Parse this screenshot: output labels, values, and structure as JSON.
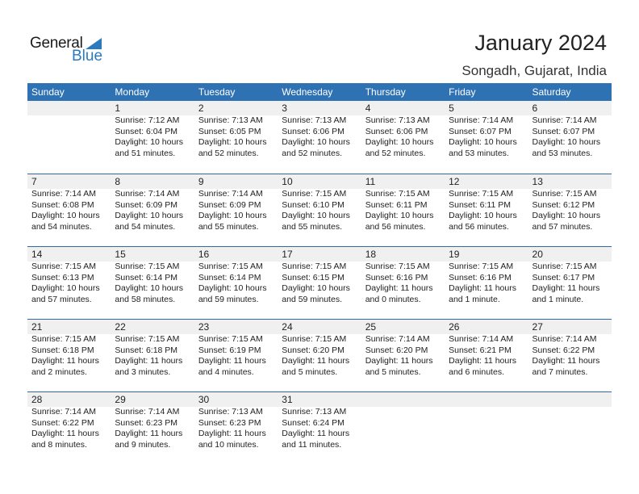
{
  "logo": {
    "general": "General",
    "blue": "Blue"
  },
  "header": {
    "title": "January 2024",
    "location": "Songadh, Gujarat, India"
  },
  "weekdays": [
    "Sunday",
    "Monday",
    "Tuesday",
    "Wednesday",
    "Thursday",
    "Friday",
    "Saturday"
  ],
  "weeks": [
    [
      null,
      {
        "day": "1",
        "sunrise": "Sunrise: 7:12 AM",
        "sunset": "Sunset: 6:04 PM",
        "daylight": "Daylight: 10 hours",
        "minutes": "and 51 minutes."
      },
      {
        "day": "2",
        "sunrise": "Sunrise: 7:13 AM",
        "sunset": "Sunset: 6:05 PM",
        "daylight": "Daylight: 10 hours",
        "minutes": "and 52 minutes."
      },
      {
        "day": "3",
        "sunrise": "Sunrise: 7:13 AM",
        "sunset": "Sunset: 6:06 PM",
        "daylight": "Daylight: 10 hours",
        "minutes": "and 52 minutes."
      },
      {
        "day": "4",
        "sunrise": "Sunrise: 7:13 AM",
        "sunset": "Sunset: 6:06 PM",
        "daylight": "Daylight: 10 hours",
        "minutes": "and 52 minutes."
      },
      {
        "day": "5",
        "sunrise": "Sunrise: 7:14 AM",
        "sunset": "Sunset: 6:07 PM",
        "daylight": "Daylight: 10 hours",
        "minutes": "and 53 minutes."
      },
      {
        "day": "6",
        "sunrise": "Sunrise: 7:14 AM",
        "sunset": "Sunset: 6:07 PM",
        "daylight": "Daylight: 10 hours",
        "minutes": "and 53 minutes."
      }
    ],
    [
      {
        "day": "7",
        "sunrise": "Sunrise: 7:14 AM",
        "sunset": "Sunset: 6:08 PM",
        "daylight": "Daylight: 10 hours",
        "minutes": "and 54 minutes."
      },
      {
        "day": "8",
        "sunrise": "Sunrise: 7:14 AM",
        "sunset": "Sunset: 6:09 PM",
        "daylight": "Daylight: 10 hours",
        "minutes": "and 54 minutes."
      },
      {
        "day": "9",
        "sunrise": "Sunrise: 7:14 AM",
        "sunset": "Sunset: 6:09 PM",
        "daylight": "Daylight: 10 hours",
        "minutes": "and 55 minutes."
      },
      {
        "day": "10",
        "sunrise": "Sunrise: 7:15 AM",
        "sunset": "Sunset: 6:10 PM",
        "daylight": "Daylight: 10 hours",
        "minutes": "and 55 minutes."
      },
      {
        "day": "11",
        "sunrise": "Sunrise: 7:15 AM",
        "sunset": "Sunset: 6:11 PM",
        "daylight": "Daylight: 10 hours",
        "minutes": "and 56 minutes."
      },
      {
        "day": "12",
        "sunrise": "Sunrise: 7:15 AM",
        "sunset": "Sunset: 6:11 PM",
        "daylight": "Daylight: 10 hours",
        "minutes": "and 56 minutes."
      },
      {
        "day": "13",
        "sunrise": "Sunrise: 7:15 AM",
        "sunset": "Sunset: 6:12 PM",
        "daylight": "Daylight: 10 hours",
        "minutes": "and 57 minutes."
      }
    ],
    [
      {
        "day": "14",
        "sunrise": "Sunrise: 7:15 AM",
        "sunset": "Sunset: 6:13 PM",
        "daylight": "Daylight: 10 hours",
        "minutes": "and 57 minutes."
      },
      {
        "day": "15",
        "sunrise": "Sunrise: 7:15 AM",
        "sunset": "Sunset: 6:14 PM",
        "daylight": "Daylight: 10 hours",
        "minutes": "and 58 minutes."
      },
      {
        "day": "16",
        "sunrise": "Sunrise: 7:15 AM",
        "sunset": "Sunset: 6:14 PM",
        "daylight": "Daylight: 10 hours",
        "minutes": "and 59 minutes."
      },
      {
        "day": "17",
        "sunrise": "Sunrise: 7:15 AM",
        "sunset": "Sunset: 6:15 PM",
        "daylight": "Daylight: 10 hours",
        "minutes": "and 59 minutes."
      },
      {
        "day": "18",
        "sunrise": "Sunrise: 7:15 AM",
        "sunset": "Sunset: 6:16 PM",
        "daylight": "Daylight: 11 hours",
        "minutes": "and 0 minutes."
      },
      {
        "day": "19",
        "sunrise": "Sunrise: 7:15 AM",
        "sunset": "Sunset: 6:16 PM",
        "daylight": "Daylight: 11 hours",
        "minutes": "and 1 minute."
      },
      {
        "day": "20",
        "sunrise": "Sunrise: 7:15 AM",
        "sunset": "Sunset: 6:17 PM",
        "daylight": "Daylight: 11 hours",
        "minutes": "and 1 minute."
      }
    ],
    [
      {
        "day": "21",
        "sunrise": "Sunrise: 7:15 AM",
        "sunset": "Sunset: 6:18 PM",
        "daylight": "Daylight: 11 hours",
        "minutes": "and 2 minutes."
      },
      {
        "day": "22",
        "sunrise": "Sunrise: 7:15 AM",
        "sunset": "Sunset: 6:18 PM",
        "daylight": "Daylight: 11 hours",
        "minutes": "and 3 minutes."
      },
      {
        "day": "23",
        "sunrise": "Sunrise: 7:15 AM",
        "sunset": "Sunset: 6:19 PM",
        "daylight": "Daylight: 11 hours",
        "minutes": "and 4 minutes."
      },
      {
        "day": "24",
        "sunrise": "Sunrise: 7:15 AM",
        "sunset": "Sunset: 6:20 PM",
        "daylight": "Daylight: 11 hours",
        "minutes": "and 5 minutes."
      },
      {
        "day": "25",
        "sunrise": "Sunrise: 7:14 AM",
        "sunset": "Sunset: 6:20 PM",
        "daylight": "Daylight: 11 hours",
        "minutes": "and 5 minutes."
      },
      {
        "day": "26",
        "sunrise": "Sunrise: 7:14 AM",
        "sunset": "Sunset: 6:21 PM",
        "daylight": "Daylight: 11 hours",
        "minutes": "and 6 minutes."
      },
      {
        "day": "27",
        "sunrise": "Sunrise: 7:14 AM",
        "sunset": "Sunset: 6:22 PM",
        "daylight": "Daylight: 11 hours",
        "minutes": "and 7 minutes."
      }
    ],
    [
      {
        "day": "28",
        "sunrise": "Sunrise: 7:14 AM",
        "sunset": "Sunset: 6:22 PM",
        "daylight": "Daylight: 11 hours",
        "minutes": "and 8 minutes."
      },
      {
        "day": "29",
        "sunrise": "Sunrise: 7:14 AM",
        "sunset": "Sunset: 6:23 PM",
        "daylight": "Daylight: 11 hours",
        "minutes": "and 9 minutes."
      },
      {
        "day": "30",
        "sunrise": "Sunrise: 7:13 AM",
        "sunset": "Sunset: 6:23 PM",
        "daylight": "Daylight: 11 hours",
        "minutes": "and 10 minutes."
      },
      {
        "day": "31",
        "sunrise": "Sunrise: 7:13 AM",
        "sunset": "Sunset: 6:24 PM",
        "daylight": "Daylight: 11 hours",
        "minutes": "and 11 minutes."
      },
      null,
      null,
      null
    ]
  ]
}
